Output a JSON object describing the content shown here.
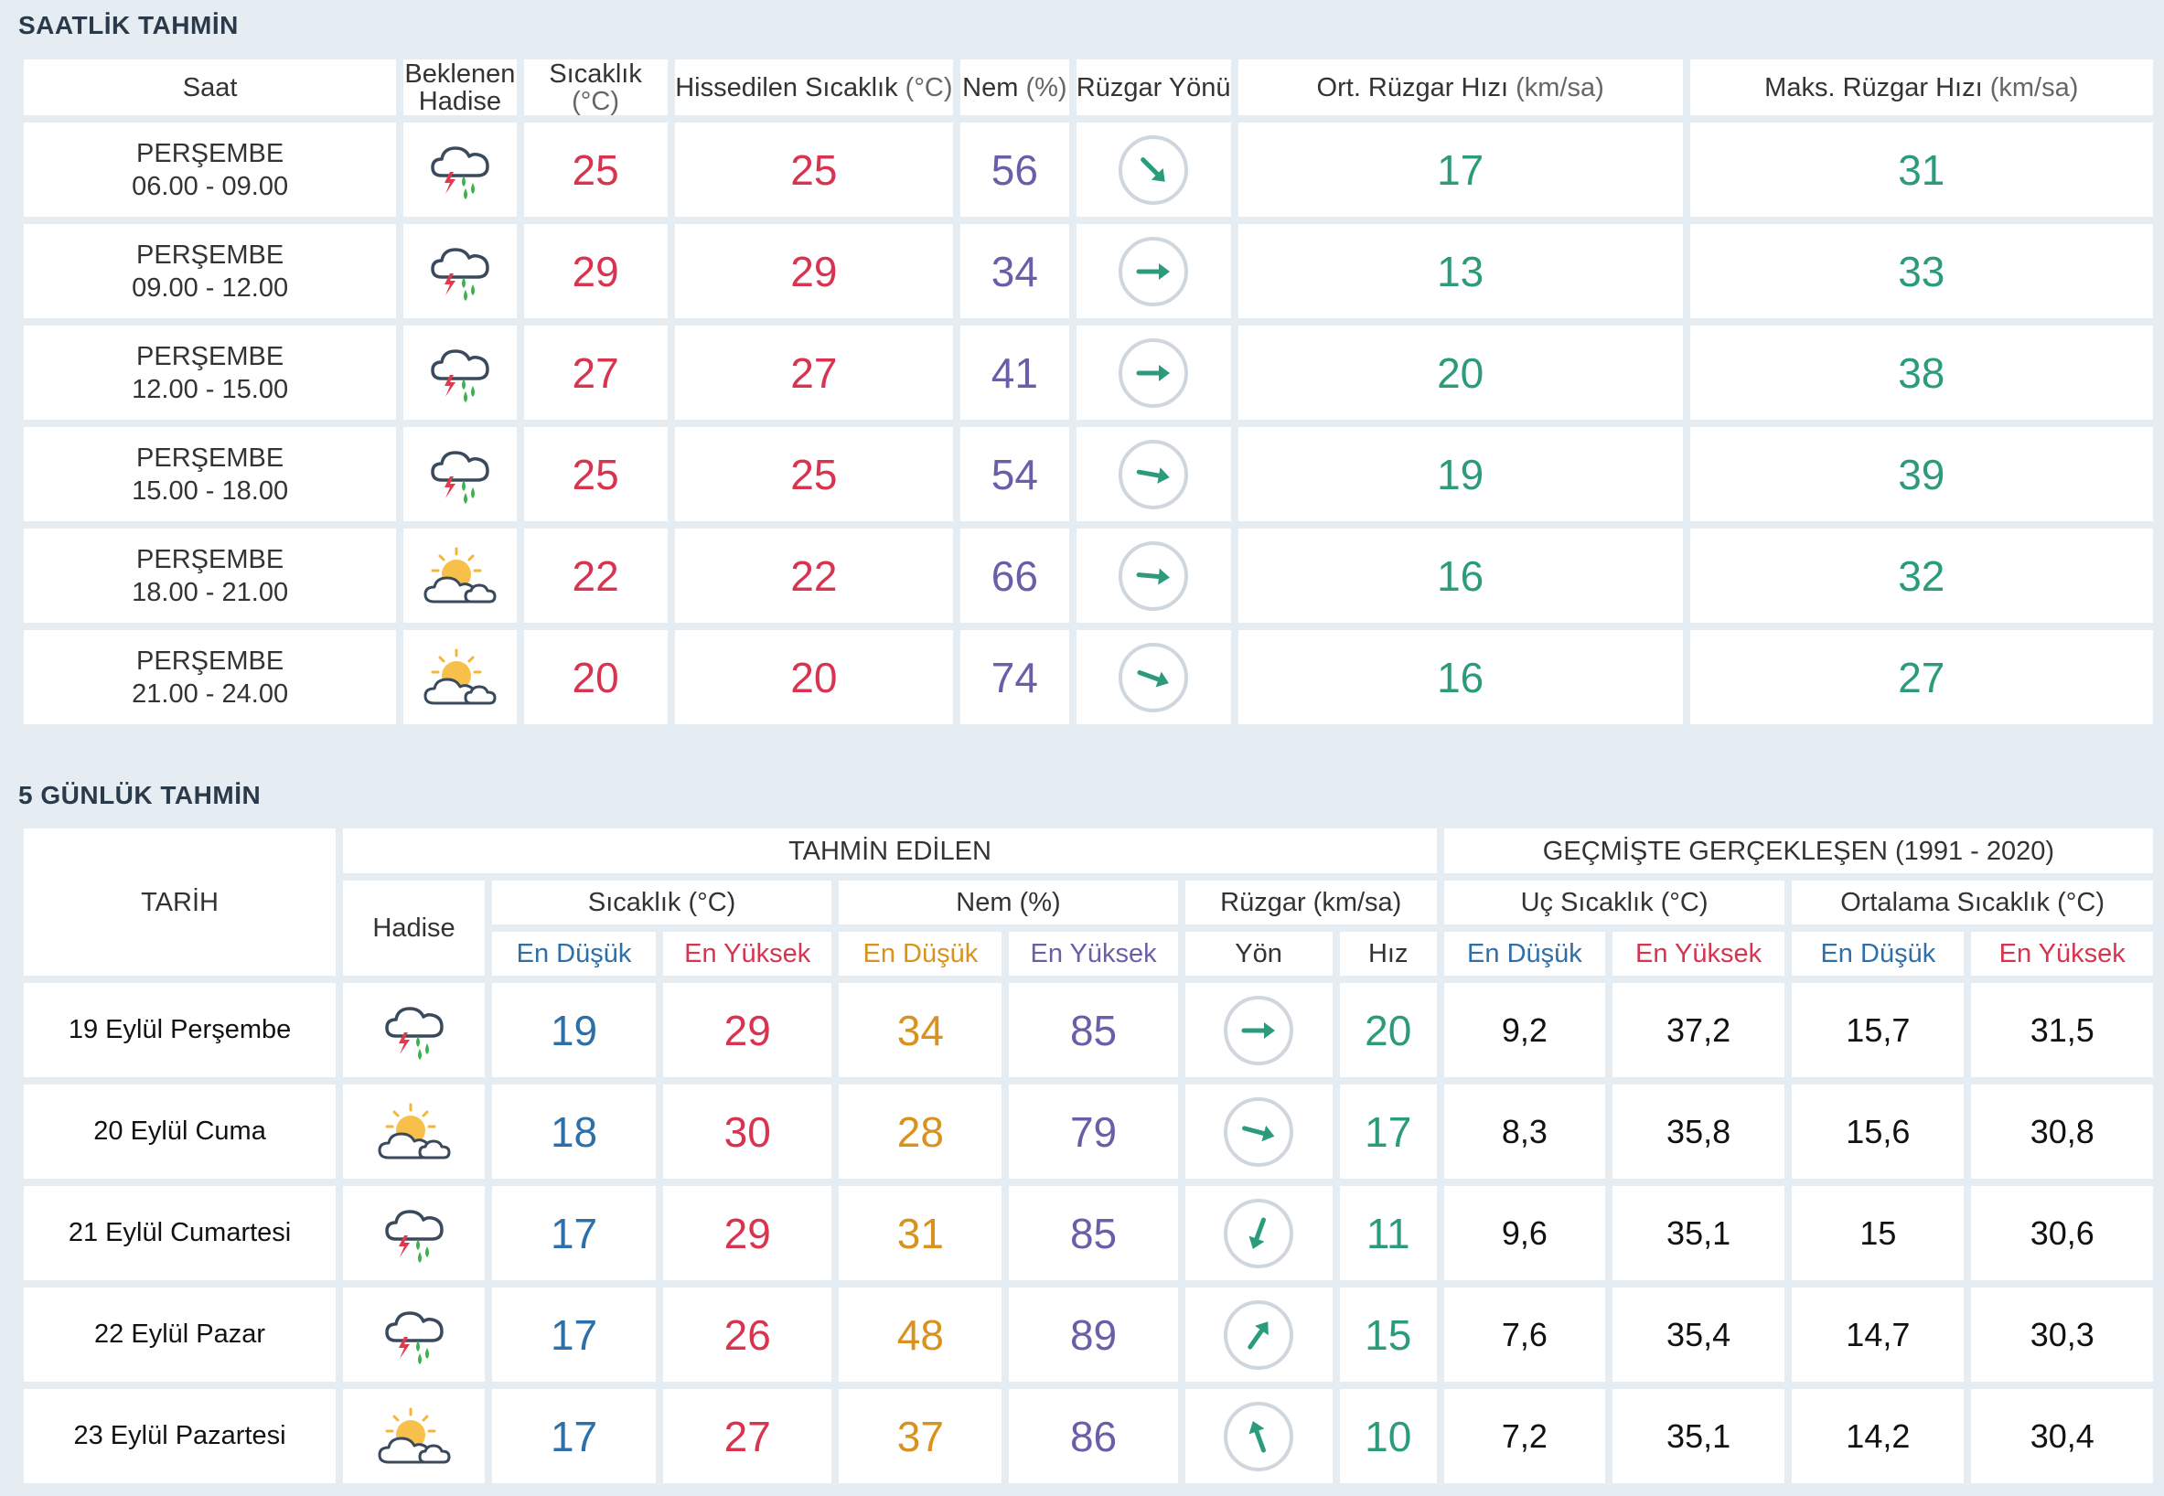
{
  "hourly": {
    "title": "SAATLİK TAHMİN",
    "headers": {
      "saat": "Saat",
      "beklenen": "Beklenen",
      "hadise": "Hadise",
      "sicaklik": "Sıcaklık",
      "sicaklik_unit": "(°C)",
      "hissedilen": "Hissedilen Sıcaklık",
      "hissedilen_unit": "(°C)",
      "nem": "Nem",
      "nem_unit": "(%)",
      "ruzgar_yonu": "Rüzgar Yönü",
      "ort_ruzgar": "Ort. Rüzgar Hızı",
      "ort_ruzgar_unit": "(km/sa)",
      "maks_ruzgar": "Maks. Rüzgar Hızı",
      "maks_ruzgar_unit": "(km/sa)"
    },
    "rows": [
      {
        "day": "PERŞEMBE",
        "time": "06.00 - 09.00",
        "icon": "thunderstorm-rain-icon",
        "temp": "25",
        "feels": "25",
        "humidity": "56",
        "wind_dir_deg": 135,
        "wind_avg": "17",
        "wind_max": "31"
      },
      {
        "day": "PERŞEMBE",
        "time": "09.00 - 12.00",
        "icon": "thunderstorm-rain-icon",
        "temp": "29",
        "feels": "29",
        "humidity": "34",
        "wind_dir_deg": 90,
        "wind_avg": "13",
        "wind_max": "33"
      },
      {
        "day": "PERŞEMBE",
        "time": "12.00 - 15.00",
        "icon": "thunderstorm-rain-icon",
        "temp": "27",
        "feels": "27",
        "humidity": "41",
        "wind_dir_deg": 90,
        "wind_avg": "20",
        "wind_max": "38"
      },
      {
        "day": "PERŞEMBE",
        "time": "15.00 - 18.00",
        "icon": "thunderstorm-rain-icon",
        "temp": "25",
        "feels": "25",
        "humidity": "54",
        "wind_dir_deg": 100,
        "wind_avg": "19",
        "wind_max": "39"
      },
      {
        "day": "PERŞEMBE",
        "time": "18.00 - 21.00",
        "icon": "partly-cloudy-icon",
        "temp": "22",
        "feels": "22",
        "humidity": "66",
        "wind_dir_deg": 95,
        "wind_avg": "16",
        "wind_max": "32"
      },
      {
        "day": "PERŞEMBE",
        "time": "21.00 - 24.00",
        "icon": "partly-cloudy-icon",
        "temp": "20",
        "feels": "20",
        "humidity": "74",
        "wind_dir_deg": 110,
        "wind_avg": "16",
        "wind_max": "27"
      }
    ]
  },
  "daily": {
    "title": "5 GÜNLÜK TAHMİN",
    "headers": {
      "tarih": "TARİH",
      "tahmin_edilen": "TAHMİN EDİLEN",
      "gecmiste": "GEÇMİŞTE GERÇEKLEŞEN (1991 - 2020)",
      "hadise": "Hadise",
      "sicaklik": "Sıcaklık (°C)",
      "nem": "Nem (%)",
      "ruzgar": "Rüzgar (km/sa)",
      "uc_sicaklik": "Uç Sıcaklık (°C)",
      "ortalama_sicaklik": "Ortalama Sıcaklık (°C)",
      "en_dusuk": "En Düşük",
      "en_yuksek": "En Yüksek",
      "yon": "Yön",
      "hiz": "Hız"
    },
    "rows": [
      {
        "date": "19 Eylül Perşembe",
        "icon": "thunderstorm-rain-icon",
        "t_low": "19",
        "t_high": "29",
        "h_low": "34",
        "h_high": "85",
        "wind_dir_deg": 90,
        "wind_speed": "20",
        "ext_low": "9,2",
        "ext_high": "37,2",
        "avg_low": "15,7",
        "avg_high": "31,5"
      },
      {
        "date": "20 Eylül Cuma",
        "icon": "partly-cloudy-icon",
        "t_low": "18",
        "t_high": "30",
        "h_low": "28",
        "h_high": "79",
        "wind_dir_deg": 105,
        "wind_speed": "17",
        "ext_low": "8,3",
        "ext_high": "35,8",
        "avg_low": "15,6",
        "avg_high": "30,8"
      },
      {
        "date": "21 Eylül Cumartesi",
        "icon": "thunderstorm-rain-icon",
        "t_low": "17",
        "t_high": "29",
        "h_low": "31",
        "h_high": "85",
        "wind_dir_deg": 200,
        "wind_speed": "11",
        "ext_low": "9,6",
        "ext_high": "35,1",
        "avg_low": "15",
        "avg_high": "30,6"
      },
      {
        "date": "22 Eylül Pazar",
        "icon": "thunderstorm-rain-icon",
        "t_low": "17",
        "t_high": "26",
        "h_low": "48",
        "h_high": "89",
        "wind_dir_deg": 35,
        "wind_speed": "15",
        "ext_low": "7,6",
        "ext_high": "35,4",
        "avg_low": "14,7",
        "avg_high": "30,3"
      },
      {
        "date": "23 Eylül Pazartesi",
        "icon": "partly-cloudy-icon",
        "t_low": "17",
        "t_high": "27",
        "h_low": "37",
        "h_high": "86",
        "wind_dir_deg": 340,
        "wind_speed": "10",
        "ext_low": "7,2",
        "ext_high": "35,1",
        "avg_low": "14,2",
        "avg_high": "30,4"
      }
    ]
  },
  "colors": {
    "background": "#e5ecf2",
    "temperature": "#d8344f",
    "humidity": "#6b5ea8",
    "wind": "#2b9b7c",
    "low": "#2d6fa8",
    "humidity_low": "#d9921e"
  }
}
